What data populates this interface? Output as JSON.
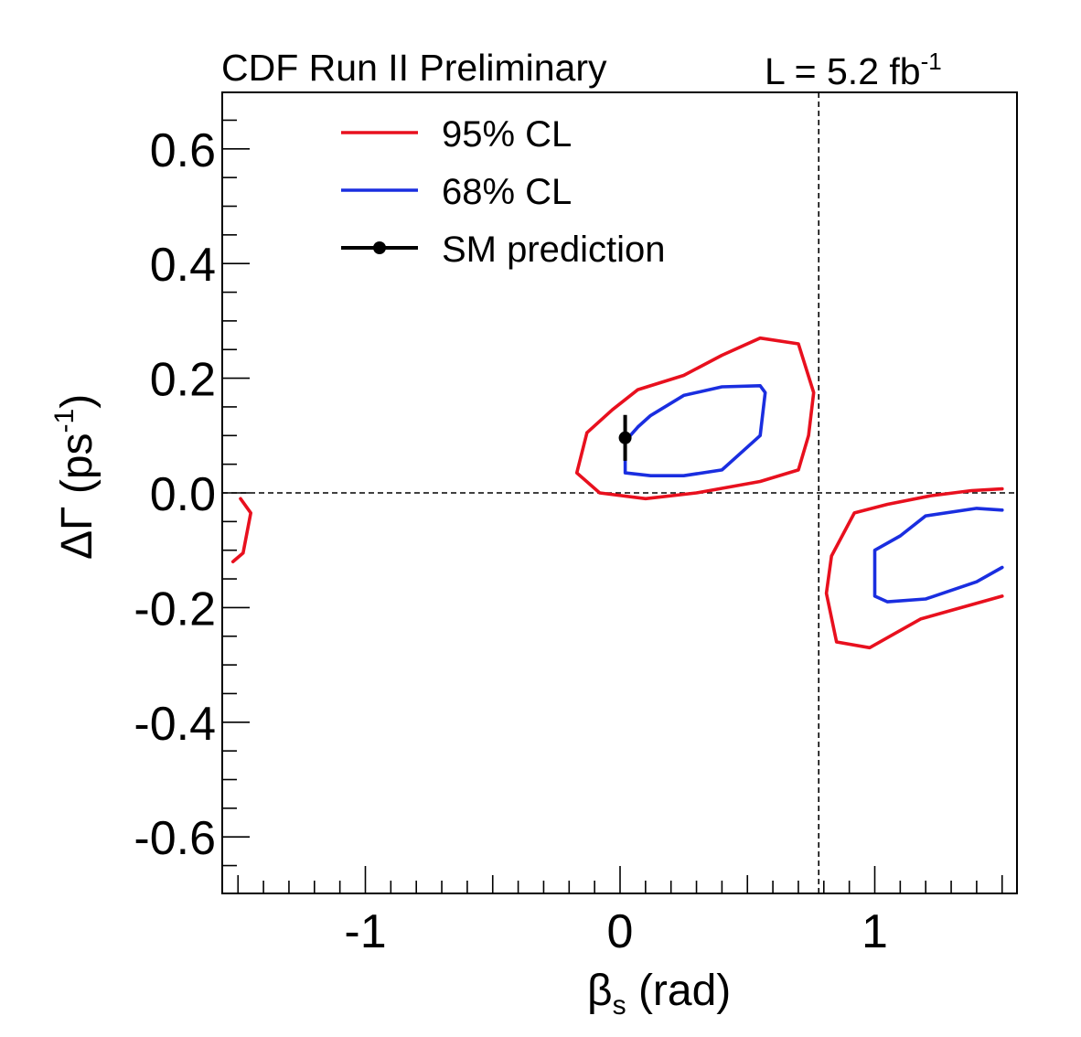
{
  "header": {
    "title": "CDF Run II Preliminary",
    "lumi_prefix": "L = 5.2 fb",
    "lumi_exponent": "-1"
  },
  "chart_data": {
    "type": "contour",
    "title": "CDF Run II Preliminary",
    "luminosity": "L = 5.2 fb-1",
    "xlabel": {
      "symbol": "β",
      "subscript": "s",
      "rest": " (rad)"
    },
    "ylabel": {
      "symbol": "ΔΓ",
      "rest": " (ps",
      "exponent": "-1",
      "close": ")"
    },
    "xlim": [
      -1.57,
      1.57
    ],
    "ylim": [
      -0.7,
      0.7
    ],
    "x_major_ticks": [
      -1,
      0,
      1
    ],
    "x_tick_labels": [
      "-1",
      "0",
      "1"
    ],
    "y_major_ticks": [
      0.6,
      0.4,
      0.2,
      0.0,
      -0.2,
      -0.4,
      -0.6
    ],
    "y_tick_labels": [
      "0.6",
      "0.4",
      "0.2",
      "0.0",
      "-0.2",
      "-0.4",
      "-0.6"
    ],
    "reference_lines": {
      "vertical_x": 0.78,
      "horizontal_y": 0.0
    },
    "legend": {
      "position": "top-left",
      "items": [
        {
          "label": "95% CL",
          "color": "#e8101e"
        },
        {
          "label": "68% CL",
          "color": "#1a2ee0"
        },
        {
          "label": "SM prediction",
          "color": "#000000"
        }
      ]
    },
    "series": [
      {
        "name": "95% CL",
        "color": "#e8101e",
        "contours": [
          [
            [
              -0.13,
              0.105
            ],
            [
              -0.03,
              0.145
            ],
            [
              0.07,
              0.18
            ],
            [
              0.25,
              0.205
            ],
            [
              0.4,
              0.24
            ],
            [
              0.55,
              0.27
            ],
            [
              0.7,
              0.26
            ],
            [
              0.76,
              0.175
            ],
            [
              0.74,
              0.1
            ],
            [
              0.7,
              0.04
            ],
            [
              0.55,
              0.02
            ],
            [
              0.3,
              0.0
            ],
            [
              0.1,
              -0.01
            ],
            [
              -0.08,
              0.0
            ],
            [
              -0.17,
              0.035
            ],
            [
              -0.13,
              0.105
            ]
          ],
          [
            [
              -1.49,
              -0.01
            ],
            [
              -1.45,
              -0.035
            ],
            [
              -1.48,
              -0.105
            ],
            [
              -1.52,
              -0.12
            ]
          ],
          [
            [
              1.5,
              0.007
            ],
            [
              1.38,
              0.004
            ],
            [
              1.22,
              -0.005
            ],
            [
              1.05,
              -0.02
            ],
            [
              0.92,
              -0.035
            ],
            [
              0.83,
              -0.11
            ],
            [
              0.81,
              -0.175
            ],
            [
              0.85,
              -0.26
            ],
            [
              0.98,
              -0.27
            ],
            [
              1.08,
              -0.245
            ],
            [
              1.18,
              -0.22
            ],
            [
              1.3,
              -0.205
            ],
            [
              1.42,
              -0.19
            ],
            [
              1.5,
              -0.18
            ]
          ]
        ]
      },
      {
        "name": "68% CL",
        "color": "#1a2ee0",
        "contours": [
          [
            [
              0.02,
              0.09
            ],
            [
              0.07,
              0.115
            ],
            [
              0.12,
              0.135
            ],
            [
              0.25,
              0.17
            ],
            [
              0.4,
              0.185
            ],
            [
              0.55,
              0.187
            ],
            [
              0.57,
              0.175
            ],
            [
              0.55,
              0.1
            ],
            [
              0.4,
              0.04
            ],
            [
              0.25,
              0.03
            ],
            [
              0.12,
              0.03
            ],
            [
              0.02,
              0.035
            ],
            [
              0.02,
              0.09
            ]
          ],
          [
            [
              1.5,
              -0.03
            ],
            [
              1.4,
              -0.027
            ],
            [
              1.2,
              -0.04
            ],
            [
              1.1,
              -0.075
            ],
            [
              1.0,
              -0.1
            ],
            [
              1.0,
              -0.18
            ],
            [
              1.05,
              -0.19
            ],
            [
              1.2,
              -0.185
            ],
            [
              1.4,
              -0.155
            ],
            [
              1.5,
              -0.13
            ]
          ]
        ]
      }
    ],
    "sm_prediction": {
      "x": 0.02,
      "y": 0.096,
      "y_err": 0.04
    }
  }
}
